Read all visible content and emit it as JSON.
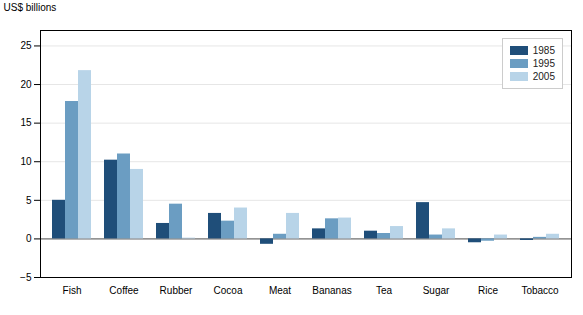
{
  "chart_data": {
    "type": "bar",
    "ylabel": "US$ billions",
    "categories": [
      "Fish",
      "Coffee",
      "Rubber",
      "Cocoa",
      "Meat",
      "Bananas",
      "Tea",
      "Sugar",
      "Rice",
      "Tobacco"
    ],
    "series": [
      {
        "name": "1985",
        "color": "#1f4e79",
        "values": [
          5.0,
          10.2,
          2.0,
          3.3,
          -0.7,
          1.3,
          1.0,
          4.7,
          -0.5,
          -0.2
        ]
      },
      {
        "name": "1995",
        "color": "#6b9dc2",
        "values": [
          17.8,
          11.0,
          4.5,
          2.3,
          0.6,
          2.6,
          0.7,
          0.5,
          -0.3,
          0.2
        ]
      },
      {
        "name": "2005",
        "color": "#b8d4e8",
        "values": [
          21.8,
          9.0,
          0.1,
          4.0,
          3.3,
          2.7,
          1.6,
          1.3,
          0.5,
          0.6
        ]
      }
    ],
    "ylim": [
      -5,
      27
    ],
    "yticks": [
      -5,
      0,
      5,
      10,
      15,
      20,
      25
    ],
    "grid": true,
    "legend": "upper right"
  }
}
